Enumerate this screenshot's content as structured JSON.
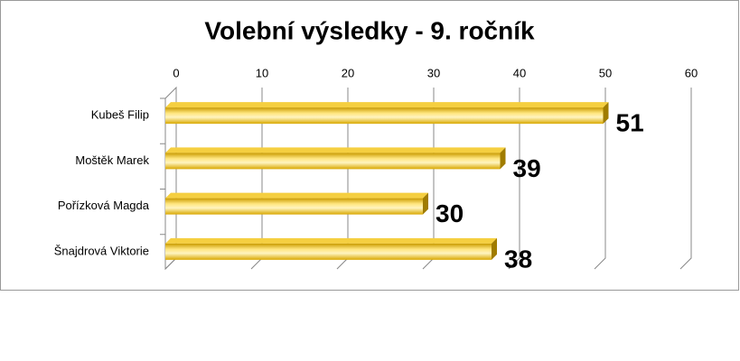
{
  "chart_data": {
    "type": "bar",
    "orientation": "horizontal",
    "title": "Volební výsledky - 9. ročník",
    "categories": [
      "Kubeš Filip",
      "Moštěk Marek",
      "Pořízková Magda",
      "Šnajdrová Viktorie"
    ],
    "values": [
      51,
      39,
      30,
      38
    ],
    "color": "#e8b400",
    "xlim": [
      0,
      60
    ],
    "xticks": [
      0,
      10,
      20,
      30,
      40,
      50,
      60
    ],
    "grid": true
  }
}
